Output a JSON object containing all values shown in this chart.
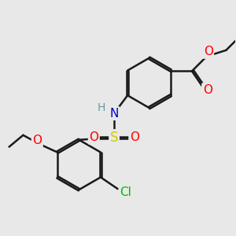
{
  "bg_color": "#e8e8e8",
  "bond_color": "#1a1a1a",
  "atom_colors": {
    "O": "#ff0000",
    "N": "#0000cd",
    "S": "#cccc00",
    "Cl": "#00bb00",
    "H": "#6699aa",
    "C": "#1a1a1a"
  },
  "bond_width": 1.8,
  "dbo": 0.012,
  "figsize": [
    3.0,
    3.0
  ],
  "dpi": 100
}
